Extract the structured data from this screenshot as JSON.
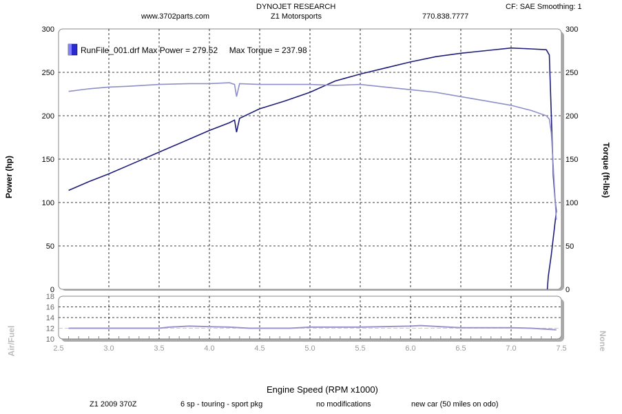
{
  "header": {
    "company": "DYNOJET RESEARCH",
    "website": "www.3702parts.com",
    "shop": "Z1 Motorsports",
    "phone": "770.838.7777",
    "settings": "CF: SAE  Smoothing: 1"
  },
  "footer": {
    "car": "Z1 2009 370Z",
    "trans": "6 sp -  touring - sport pkg",
    "mods": "no modifications",
    "notes": "new car (50 miles on odo)"
  },
  "colors": {
    "power": "#1c1c78",
    "torque": "#8e8ec8",
    "afr": "#9a94cc",
    "legend": "#2a2ad0"
  },
  "chart_data": [
    {
      "type": "line",
      "legend": "RunFile_001.drf Max Power = 279.52     Max Torque = 237.98",
      "xlabel": "Engine Speed (RPM x1000)",
      "ylabel": "Power (hp)",
      "ylabel_right": "Torque (ft-lbs)",
      "xlim": [
        2.5,
        7.5
      ],
      "ylim": [
        0,
        300
      ],
      "xticks": [
        "2.5",
        "3.0",
        "3.5",
        "4.0",
        "4.5",
        "5.0",
        "5.5",
        "6.0",
        "6.5",
        "7.0",
        "7.5"
      ],
      "yticks": [
        "0",
        "50",
        "100",
        "150",
        "200",
        "250",
        "300"
      ],
      "grid": true,
      "series": [
        {
          "name": "Power",
          "x": [
            2.6,
            2.8,
            3.0,
            3.2,
            3.5,
            3.8,
            4.0,
            4.2,
            4.25,
            4.27,
            4.3,
            4.5,
            4.75,
            5.0,
            5.25,
            5.5,
            5.75,
            6.0,
            6.25,
            6.5,
            6.75,
            7.0,
            7.2,
            7.35,
            7.38,
            7.4,
            7.42,
            7.44,
            7.45,
            7.43,
            7.4,
            7.37,
            7.36
          ],
          "y": [
            114,
            124,
            133,
            143,
            158,
            173,
            183,
            192,
            195,
            181,
            197,
            208,
            217,
            227,
            240,
            248,
            255,
            262,
            268,
            272,
            275,
            278,
            277,
            276,
            270,
            200,
            130,
            100,
            90,
            70,
            40,
            15,
            0
          ]
        },
        {
          "name": "Torque",
          "x": [
            2.6,
            2.8,
            3.0,
            3.2,
            3.5,
            3.8,
            4.0,
            4.2,
            4.25,
            4.27,
            4.3,
            4.5,
            4.75,
            5.0,
            5.25,
            5.5,
            5.75,
            6.0,
            6.25,
            6.5,
            6.75,
            7.0,
            7.2,
            7.35,
            7.38,
            7.4,
            7.42,
            7.44,
            7.45
          ],
          "y": [
            228,
            231,
            233,
            234,
            236,
            237,
            237,
            238,
            236,
            222,
            237,
            236,
            236,
            236,
            235,
            236,
            233,
            230,
            227,
            222,
            217,
            212,
            206,
            200,
            196,
            180,
            140,
            100,
            80
          ]
        }
      ]
    },
    {
      "type": "line",
      "ylabel": "Air/Fuel",
      "ylabel_right": "None",
      "xlim": [
        2.5,
        7.5
      ],
      "ylim": [
        10,
        18
      ],
      "yticks": [
        "10",
        "12",
        "14",
        "16",
        "18"
      ],
      "series": [
        {
          "name": "Air/Fuel",
          "x": [
            2.6,
            3.0,
            3.5,
            3.6,
            3.8,
            4.0,
            4.2,
            4.4,
            4.8,
            5.0,
            5.5,
            6.0,
            6.1,
            6.3,
            6.5,
            7.0,
            7.2,
            7.45
          ],
          "y": [
            12.0,
            12.0,
            12.0,
            12.2,
            12.4,
            12.3,
            12.2,
            12.0,
            12.0,
            12.2,
            12.2,
            12.4,
            12.5,
            12.3,
            12.1,
            12.1,
            12.0,
            11.7
          ]
        }
      ]
    }
  ]
}
